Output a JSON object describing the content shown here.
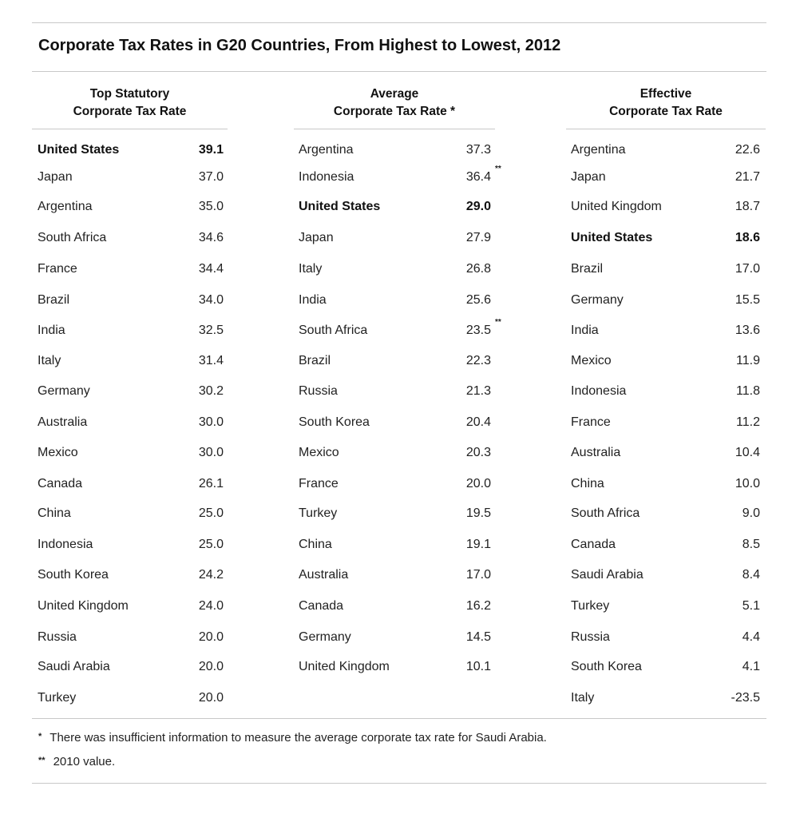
{
  "chart_data": {
    "type": "table",
    "title": "Corporate Tax Rates in G20 Countries, From Highest to Lowest, 2012",
    "columns": [
      {
        "heading": [
          "Top Statutory",
          "Corporate Tax Rate"
        ],
        "rows": [
          {
            "country": "United States",
            "value": "39.1",
            "bold": true
          },
          {
            "country": "Japan",
            "value": "37.0"
          },
          {
            "country": "Argentina",
            "value": "35.0"
          },
          {
            "country": "South Africa",
            "value": "34.6"
          },
          {
            "country": "France",
            "value": "34.4"
          },
          {
            "country": "Brazil",
            "value": "34.0"
          },
          {
            "country": "India",
            "value": "32.5"
          },
          {
            "country": "Italy",
            "value": "31.4"
          },
          {
            "country": "Germany",
            "value": "30.2"
          },
          {
            "country": "Australia",
            "value": "30.0"
          },
          {
            "country": "Mexico",
            "value": "30.0"
          },
          {
            "country": "Canada",
            "value": "26.1"
          },
          {
            "country": "China",
            "value": "25.0"
          },
          {
            "country": "Indonesia",
            "value": "25.0"
          },
          {
            "country": "South Korea",
            "value": "24.2"
          },
          {
            "country": "United Kingdom",
            "value": "24.0"
          },
          {
            "country": "Russia",
            "value": "20.0"
          },
          {
            "country": "Saudi Arabia",
            "value": "20.0"
          },
          {
            "country": "Turkey",
            "value": "20.0"
          }
        ]
      },
      {
        "heading": [
          "Average",
          "Corporate Tax Rate *"
        ],
        "rows": [
          {
            "country": "Argentina",
            "value": "37.3"
          },
          {
            "country": "Indonesia",
            "value": "36.4",
            "note": "**"
          },
          {
            "country": "United States",
            "value": "29.0",
            "bold": true
          },
          {
            "country": "Japan",
            "value": "27.9"
          },
          {
            "country": "Italy",
            "value": "26.8"
          },
          {
            "country": "India",
            "value": "25.6"
          },
          {
            "country": "South Africa",
            "value": "23.5",
            "note": "**"
          },
          {
            "country": "Brazil",
            "value": "22.3"
          },
          {
            "country": "Russia",
            "value": "21.3"
          },
          {
            "country": "South Korea",
            "value": "20.4"
          },
          {
            "country": "Mexico",
            "value": "20.3"
          },
          {
            "country": "France",
            "value": "20.0"
          },
          {
            "country": "Turkey",
            "value": "19.5"
          },
          {
            "country": "China",
            "value": "19.1"
          },
          {
            "country": "Australia",
            "value": "17.0"
          },
          {
            "country": "Canada",
            "value": "16.2"
          },
          {
            "country": "Germany",
            "value": "14.5"
          },
          {
            "country": "United Kingdom",
            "value": "10.1"
          }
        ]
      },
      {
        "heading": [
          "Effective",
          "Corporate Tax Rate"
        ],
        "rows": [
          {
            "country": "Argentina",
            "value": "22.6"
          },
          {
            "country": "Japan",
            "value": "21.7"
          },
          {
            "country": "United Kingdom",
            "value": "18.7"
          },
          {
            "country": "United States",
            "value": "18.6",
            "bold": true
          },
          {
            "country": "Brazil",
            "value": "17.0"
          },
          {
            "country": "Germany",
            "value": "15.5"
          },
          {
            "country": "India",
            "value": "13.6"
          },
          {
            "country": "Mexico",
            "value": "11.9"
          },
          {
            "country": "Indonesia",
            "value": "11.8"
          },
          {
            "country": "France",
            "value": "11.2"
          },
          {
            "country": "Australia",
            "value": "10.4"
          },
          {
            "country": "China",
            "value": "10.0"
          },
          {
            "country": "South Africa",
            "value": "9.0"
          },
          {
            "country": "Canada",
            "value": "8.5"
          },
          {
            "country": "Saudi Arabia",
            "value": "8.4"
          },
          {
            "country": "Turkey",
            "value": "5.1"
          },
          {
            "country": "Russia",
            "value": "4.4"
          },
          {
            "country": "South Korea",
            "value": "4.1"
          },
          {
            "country": "Italy",
            "value": "-23.5"
          }
        ]
      }
    ],
    "footnotes": [
      {
        "mark": "*",
        "text": "There was insufficient information to measure the average corporate tax rate for Saudi Arabia."
      },
      {
        "mark": "**",
        "text": "2010 value."
      }
    ]
  }
}
